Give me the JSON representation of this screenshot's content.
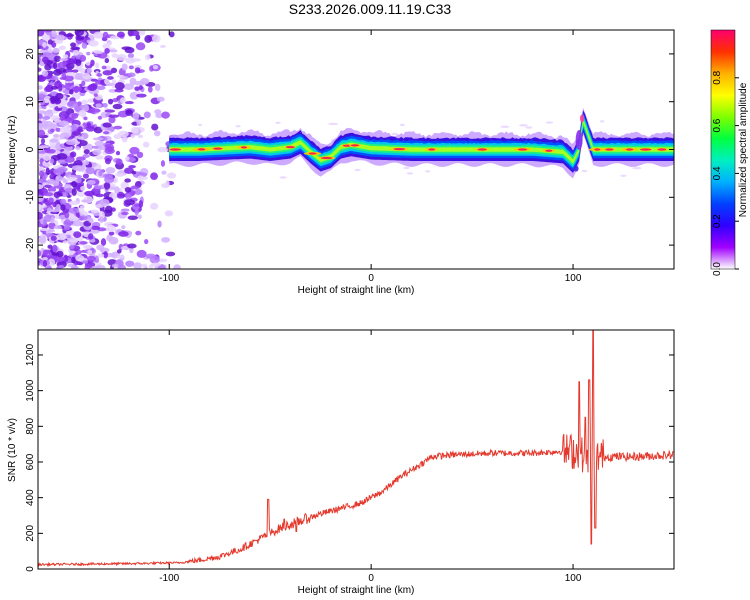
{
  "title": "S233.2026.009.11.19.C33",
  "chart_data": [
    {
      "type": "heatmap",
      "name": "spectrogram",
      "xlabel": "Height of straight line (km)",
      "ylabel": "Frequency (Hz)",
      "xlim": [
        -165,
        150
      ],
      "ylim": [
        -25,
        25
      ],
      "xticks": [
        "-100",
        "0",
        "100"
      ],
      "yticks": [
        "-20",
        "-10",
        "0",
        "10",
        "20"
      ],
      "colorbar": {
        "label": "Normalized spectral amplitude",
        "range": [
          0,
          1
        ],
        "ticks": [
          "0.0",
          "0.2",
          "0.4",
          "0.6",
          "0.8"
        ],
        "colors": [
          "#ffffff",
          "#a000ff",
          "#3000ff",
          "#0040ff",
          "#00b0ff",
          "#00f0c0",
          "#00ff40",
          "#80ff00",
          "#ffff00",
          "#ffb000",
          "#ff3000",
          "#ff0070"
        ]
      },
      "ridge": {
        "x": [
          -100,
          -85,
          -70,
          -60,
          -50,
          -40,
          -35,
          -30,
          -25,
          -20,
          -15,
          -10,
          0,
          20,
          40,
          60,
          80,
          95,
          100,
          103,
          105,
          110,
          120,
          140,
          150
        ],
        "freq": [
          0,
          0,
          0.3,
          0.5,
          0,
          0.5,
          1.5,
          -0.5,
          -2.2,
          -1.5,
          0.5,
          1,
          0.3,
          0,
          0,
          0,
          0,
          -0.5,
          -2.5,
          0,
          6,
          0,
          0,
          0,
          0
        ]
      }
    },
    {
      "type": "line",
      "name": "snr",
      "xlabel": "Height of straight line (km)",
      "ylabel": "SNR (10 * v/v)",
      "xlim": [
        -165,
        150
      ],
      "ylim": [
        0,
        1340
      ],
      "xticks": [
        "-100",
        "0",
        "100"
      ],
      "yticks": [
        "0",
        "200",
        "400",
        "600",
        "800",
        "1000",
        "1200"
      ],
      "color": "#e43a2e",
      "trend": {
        "x": [
          -165,
          -120,
          -95,
          -85,
          -75,
          -65,
          -55,
          -45,
          -35,
          -25,
          -15,
          -5,
          5,
          15,
          25,
          30,
          40,
          60,
          80,
          95,
          100,
          105,
          110,
          115,
          130,
          150
        ],
        "y": [
          25,
          30,
          35,
          50,
          70,
          110,
          170,
          230,
          270,
          310,
          340,
          370,
          430,
          520,
          590,
          630,
          640,
          650,
          650,
          660,
          660,
          640,
          640,
          630,
          630,
          640
        ]
      },
      "noise_amplitude": [
        12,
        25,
        60,
        95
      ],
      "spikes": [
        {
          "x": -51,
          "y": 390
        },
        {
          "x": -43,
          "y": 280
        },
        {
          "x": -37,
          "y": 210
        },
        {
          "x": 103,
          "y": 1050
        },
        {
          "x": 106,
          "y": 850
        },
        {
          "x": 108,
          "y": 1060
        },
        {
          "x": 109,
          "y": 140
        },
        {
          "x": 110,
          "y": 1340
        },
        {
          "x": 111,
          "y": 230
        }
      ]
    }
  ]
}
